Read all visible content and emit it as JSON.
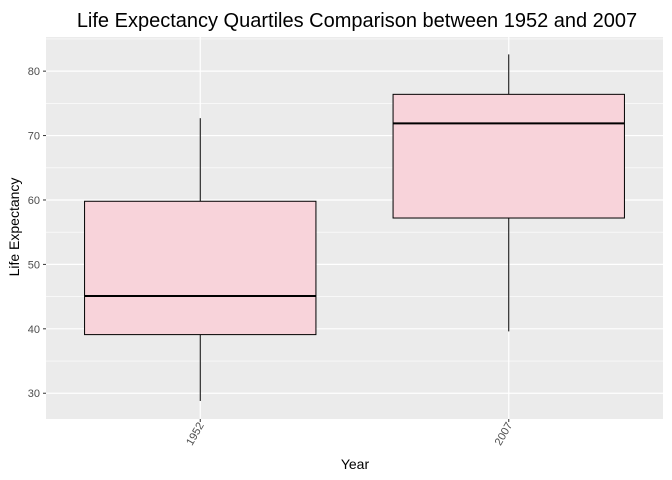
{
  "chart_data": {
    "type": "box",
    "title": "Life Expectancy Quartiles Comparison between 1952 and 2007",
    "xlabel": "Year",
    "ylabel": "Life Expectancy",
    "categories": [
      "1952",
      "2007"
    ],
    "boxes": [
      {
        "category": "1952",
        "min": 28.8,
        "q1": 39.1,
        "median": 45.1,
        "q3": 59.8,
        "max": 72.7
      },
      {
        "category": "2007",
        "min": 39.6,
        "q1": 57.2,
        "median": 71.9,
        "q3": 76.4,
        "max": 82.6
      }
    ],
    "ylim": [
      26.0,
      85.3
    ],
    "yticks": [
      30,
      40,
      50,
      60,
      70,
      80
    ],
    "grid": true,
    "x_tick_rotation": "vertical",
    "colors": {
      "panel": "#ebebeb",
      "gridline": "#ffffff",
      "box_fill": "#f8d3da",
      "box_stroke": "#000000"
    }
  }
}
